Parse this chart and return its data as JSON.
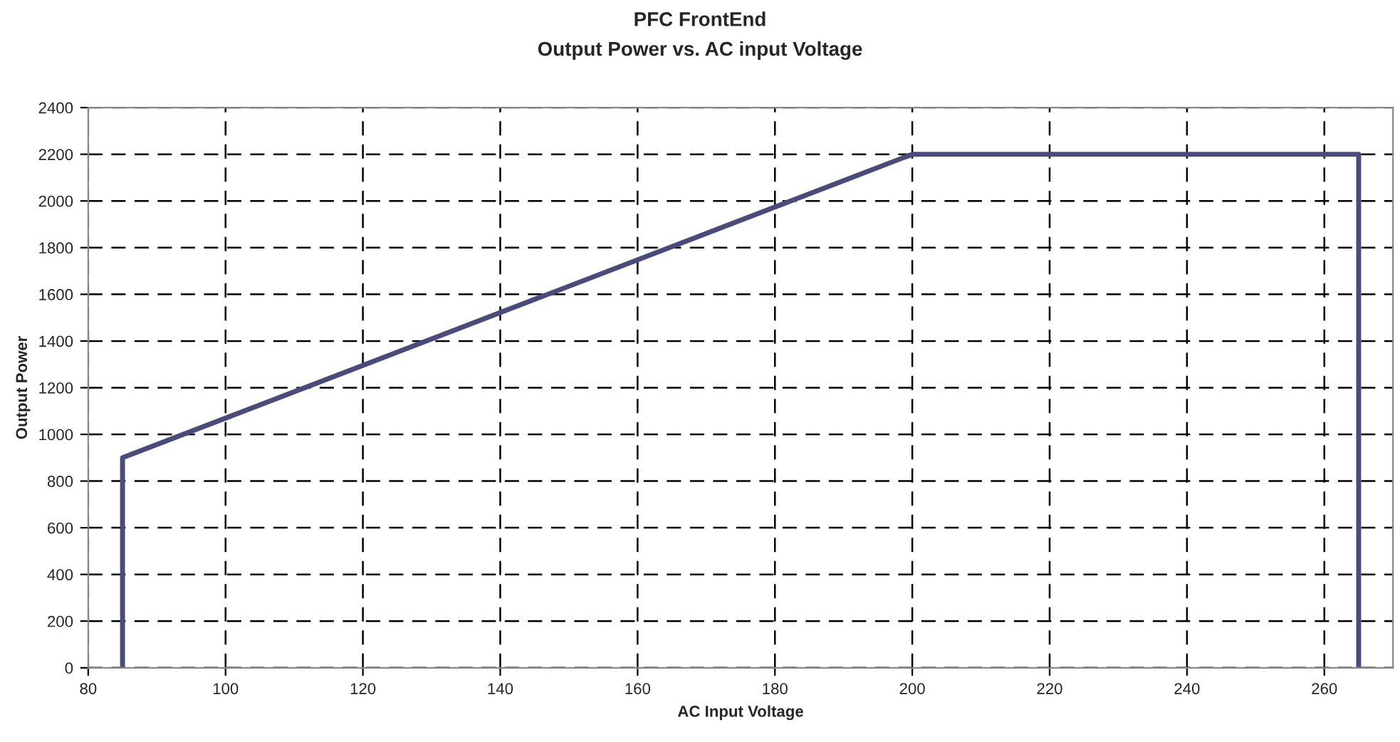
{
  "chart_data": {
    "type": "line",
    "title": "PFC FrontEnd",
    "subtitle": "Output Power vs. AC input Voltage",
    "xlabel": "AC Input Voltage",
    "ylabel": "Output Power",
    "series": [
      {
        "color": "#4b4a7c",
        "x": [
          85,
          85,
          200,
          265,
          265
        ],
        "values": [
          0,
          900,
          2200,
          2200,
          0
        ]
      }
    ],
    "xlim": [
      80,
      270
    ],
    "xticks": [
      80,
      100,
      120,
      140,
      160,
      180,
      200,
      220,
      240,
      260
    ],
    "ylim": [
      0,
      2400
    ],
    "yticks": [
      0,
      200,
      400,
      600,
      800,
      1000,
      1200,
      1400,
      1600,
      1800,
      2000,
      2200,
      2400
    ],
    "grid": true,
    "line_style": "solid",
    "marker": "none"
  }
}
